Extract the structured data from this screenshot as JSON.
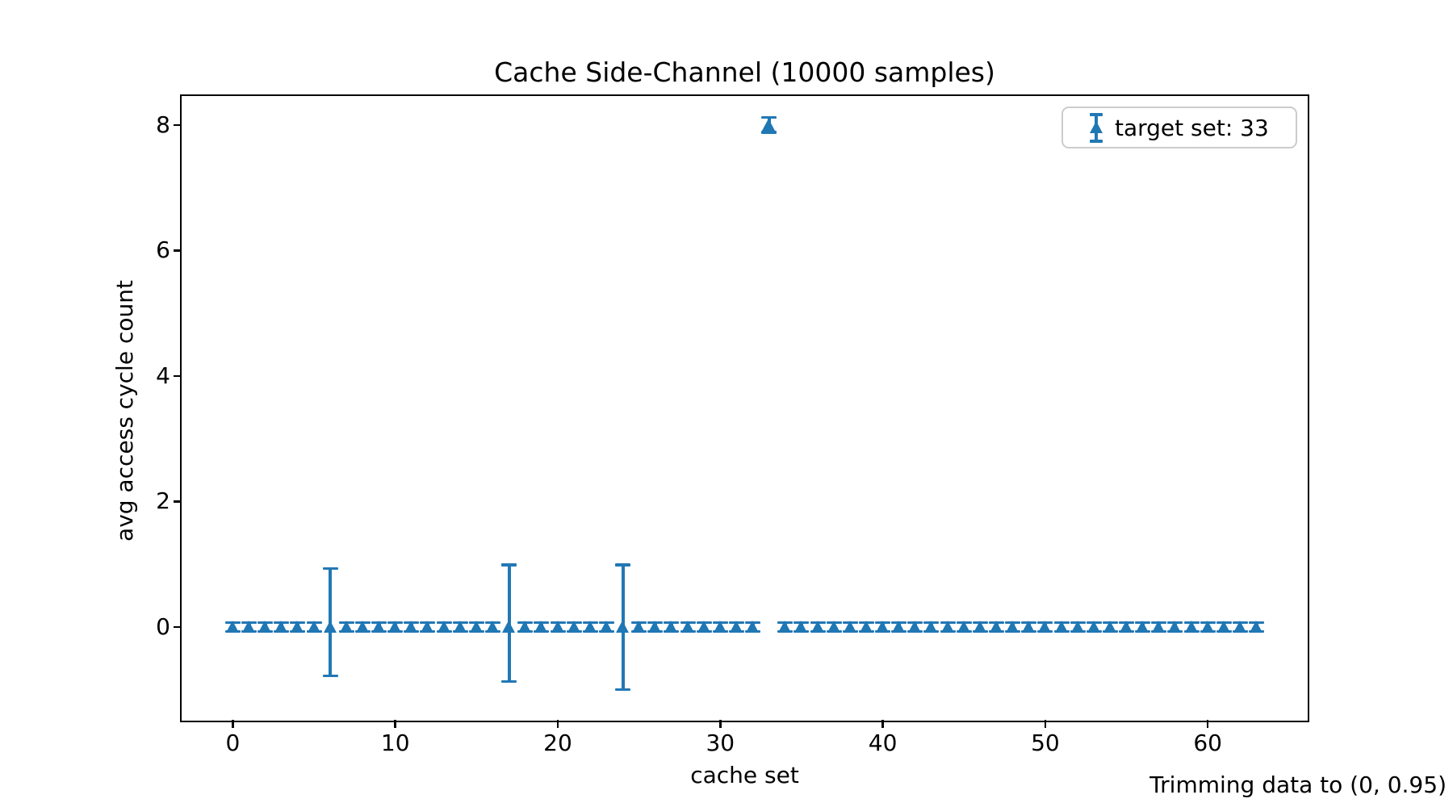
{
  "chart_data": {
    "type": "scatter",
    "title": "Cache Side-Channel (10000 samples)",
    "xlabel": "cache set",
    "ylabel": "avg access cycle count",
    "annotation": "Trimming data to (0, 0.95)",
    "legend_label": "target set: 33",
    "legend_position": "upper right",
    "marker": "triangle_up-with-errorbars",
    "marker_color": "#1f77b4",
    "errorbar_color": "#2278b5",
    "xlim": [
      -3.15,
      66.15
    ],
    "ylim": [
      -1.48,
      8.46
    ],
    "xticks": [
      0,
      10,
      20,
      30,
      40,
      50,
      60
    ],
    "yticks": [
      0,
      2,
      4,
      6,
      8
    ],
    "grid": false,
    "n_sets": 64,
    "target_set": 33,
    "target_value": 8,
    "baseline_value": 0,
    "series": [
      {
        "name": "target set: 33",
        "x": [
          0,
          1,
          2,
          3,
          4,
          5,
          6,
          7,
          8,
          9,
          10,
          11,
          12,
          13,
          14,
          15,
          16,
          17,
          18,
          19,
          20,
          21,
          22,
          23,
          24,
          25,
          26,
          27,
          28,
          29,
          30,
          31,
          32,
          33,
          34,
          35,
          36,
          37,
          38,
          39,
          40,
          41,
          42,
          43,
          44,
          45,
          46,
          47,
          48,
          49,
          50,
          51,
          52,
          53,
          54,
          55,
          56,
          57,
          58,
          59,
          60,
          61,
          62,
          63
        ],
        "y": [
          0,
          0,
          0,
          0,
          0,
          0,
          0,
          0,
          0,
          0,
          0,
          0,
          0,
          0,
          0,
          0,
          0,
          0,
          0,
          0,
          0,
          0,
          0,
          0,
          0,
          0,
          0,
          0,
          0,
          0,
          0,
          0,
          0,
          8,
          0,
          0,
          0,
          0,
          0,
          0,
          0,
          0,
          0,
          0,
          0,
          0,
          0,
          0,
          0,
          0,
          0,
          0,
          0,
          0,
          0,
          0,
          0,
          0,
          0,
          0,
          0,
          0,
          0,
          0
        ],
        "err_up": [
          0.07,
          0.07,
          0.07,
          0.07,
          0.07,
          0.07,
          0.93,
          0.07,
          0.07,
          0.07,
          0.07,
          0.07,
          0.07,
          0.07,
          0.07,
          0.07,
          0.07,
          0.99,
          0.07,
          0.07,
          0.07,
          0.07,
          0.07,
          0.07,
          0.99,
          0.07,
          0.07,
          0.07,
          0.07,
          0.07,
          0.07,
          0.07,
          0.07,
          0.12,
          0.07,
          0.07,
          0.07,
          0.07,
          0.07,
          0.07,
          0.07,
          0.07,
          0.07,
          0.07,
          0.07,
          0.07,
          0.07,
          0.07,
          0.07,
          0.07,
          0.07,
          0.07,
          0.07,
          0.07,
          0.07,
          0.07,
          0.07,
          0.07,
          0.07,
          0.07,
          0.07,
          0.07,
          0.07,
          0.07
        ],
        "err_down": [
          0.07,
          0.07,
          0.07,
          0.07,
          0.07,
          0.07,
          0.78,
          0.07,
          0.07,
          0.07,
          0.07,
          0.07,
          0.07,
          0.07,
          0.07,
          0.07,
          0.07,
          0.87,
          0.07,
          0.07,
          0.07,
          0.07,
          0.07,
          0.07,
          1.0,
          0.07,
          0.07,
          0.07,
          0.07,
          0.07,
          0.07,
          0.07,
          0.07,
          0.12,
          0.07,
          0.07,
          0.07,
          0.07,
          0.07,
          0.07,
          0.07,
          0.07,
          0.07,
          0.07,
          0.07,
          0.07,
          0.07,
          0.07,
          0.07,
          0.07,
          0.07,
          0.07,
          0.07,
          0.07,
          0.07,
          0.07,
          0.07,
          0.07,
          0.07,
          0.07,
          0.07,
          0.07,
          0.07,
          0.07
        ]
      }
    ]
  }
}
